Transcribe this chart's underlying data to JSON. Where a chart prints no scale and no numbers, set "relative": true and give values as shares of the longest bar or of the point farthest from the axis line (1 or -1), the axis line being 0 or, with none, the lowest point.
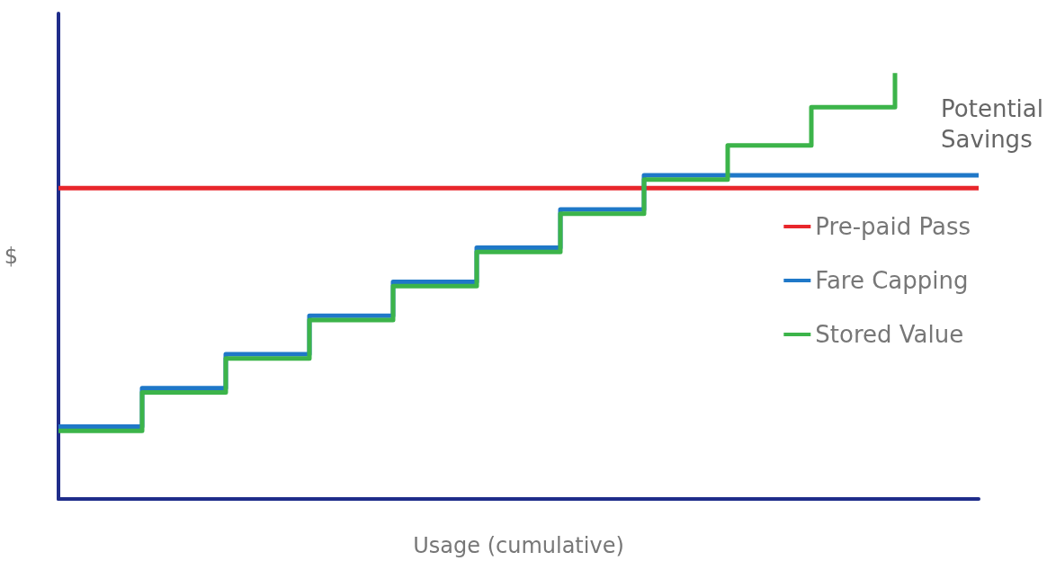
{
  "chart_data": {
    "type": "step",
    "relative": true,
    "xlabel": "Usage (cumulative)",
    "ylabel": "$",
    "categories": [
      null,
      null,
      null,
      null,
      null,
      null,
      null,
      null,
      null,
      null,
      null,
      null
    ],
    "series": [
      {
        "name": "Pre-paid Pass",
        "color": "#e8262b",
        "type": "line",
        "values": [
          0.73,
          0.73,
          0.73,
          0.73,
          0.73,
          0.73,
          0.73,
          0.73,
          0.73,
          0.73,
          0.73,
          0.73
        ]
      },
      {
        "name": "Fare Capping",
        "color": "#1f78c8",
        "values": [
          0.17,
          0.26,
          0.34,
          0.43,
          0.51,
          0.59,
          0.68,
          0.76,
          0.76,
          0.76,
          0.76,
          0.76
        ]
      },
      {
        "name": "Stored Value",
        "color": "#3cb44a",
        "values": [
          0.16,
          0.25,
          0.33,
          0.42,
          0.5,
          0.58,
          0.67,
          0.75,
          0.83,
          0.92,
          1,
          null
        ]
      }
    ],
    "annotations": [
      "Potential Savings"
    ],
    "legend": "right",
    "grid": false,
    "marker": "none",
    "line_style": "solid"
  }
}
